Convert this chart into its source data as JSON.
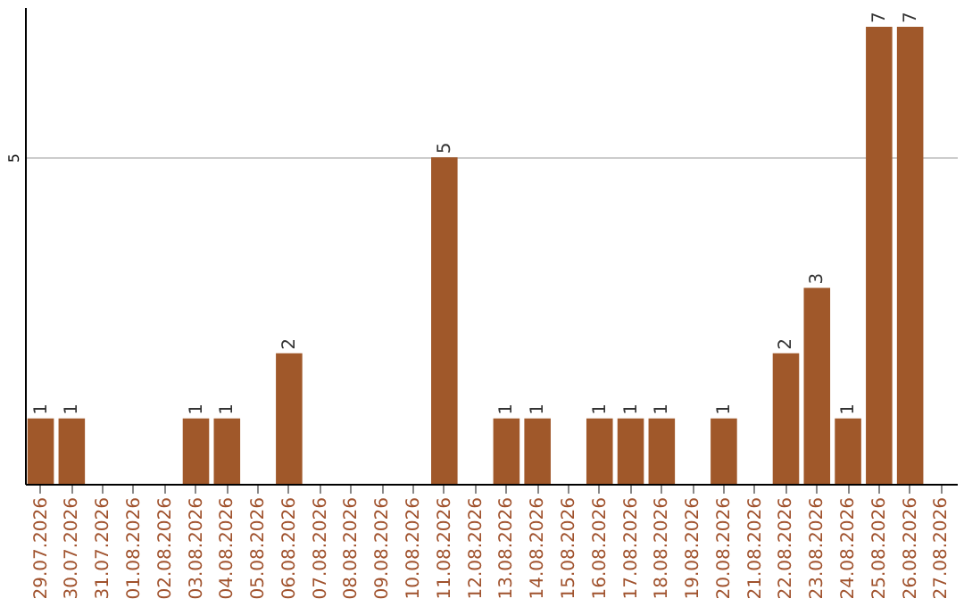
{
  "chart_data": {
    "type": "bar",
    "categories": [
      "29.07.2026",
      "30.07.2026",
      "31.07.2026",
      "01.08.2026",
      "02.08.2026",
      "03.08.2026",
      "04.08.2026",
      "05.08.2026",
      "06.08.2026",
      "07.08.2026",
      "08.08.2026",
      "09.08.2026",
      "10.08.2026",
      "11.08.2026",
      "12.08.2026",
      "13.08.2026",
      "14.08.2026",
      "15.08.2026",
      "16.08.2026",
      "17.08.2026",
      "18.08.2026",
      "19.08.2026",
      "20.08.2026",
      "21.08.2026",
      "22.08.2026",
      "23.08.2026",
      "24.08.2026",
      "25.08.2026",
      "26.08.2026",
      "27.08.2026"
    ],
    "values": [
      1,
      1,
      0,
      0,
      0,
      1,
      1,
      0,
      2,
      0,
      0,
      0,
      0,
      5,
      0,
      1,
      1,
      0,
      1,
      1,
      1,
      0,
      1,
      0,
      2,
      3,
      1,
      7,
      7,
      0
    ],
    "value_labels": [
      "1",
      "1",
      null,
      null,
      null,
      "1",
      "1",
      null,
      "2",
      null,
      null,
      null,
      null,
      "5",
      null,
      "1",
      "1",
      null,
      "1",
      "1",
      "1",
      null,
      "1",
      null,
      "2",
      "3",
      "1",
      "7",
      "7",
      null
    ],
    "color": "#a0582a",
    "ylim": [
      0,
      7.3
    ],
    "yticks": [
      5
    ],
    "grid": "y"
  }
}
